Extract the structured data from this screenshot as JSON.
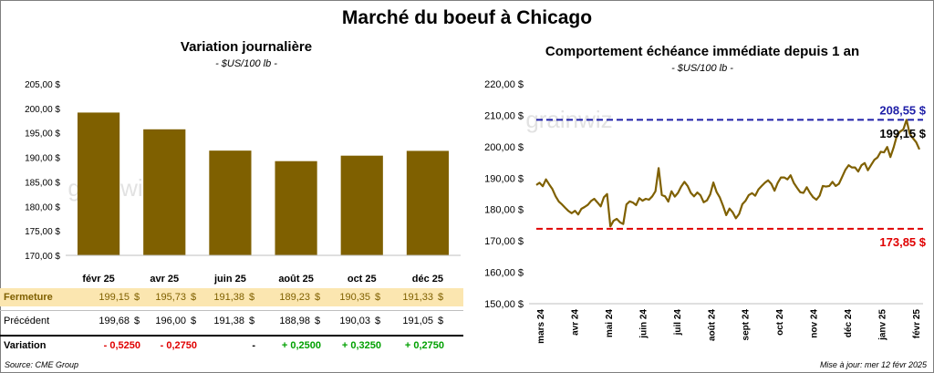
{
  "page_title": "Marché du boeuf à Chicago",
  "left_chart": {
    "title": "Variation journalière",
    "subtitle": "- $US/100 lb -",
    "watermark": "grainwiz"
  },
  "right_chart": {
    "title": "Comportement échéance immédiate depuis 1 an",
    "subtitle": "- $US/100 lb -",
    "watermark": "grainwiz",
    "high_label": "208,55 $",
    "last_label": "199,15 $",
    "low_label": "173,85 $"
  },
  "table": {
    "rows": [
      {
        "label": "Fermeture",
        "values": [
          "199,15",
          "195,73",
          "191,38",
          "189,23",
          "190,35",
          "191,33"
        ],
        "unit": "$"
      },
      {
        "label": "Précédent",
        "values": [
          "199,68",
          "196,00",
          "191,38",
          "188,98",
          "190,03",
          "191,05"
        ],
        "unit": "$"
      },
      {
        "label": "Variation",
        "values": [
          "- 0,5250",
          "- 0,2750",
          "-",
          "+ 0,2500",
          "+ 0,3250",
          "+ 0,2750"
        ],
        "unit": ""
      }
    ]
  },
  "footer": {
    "source": "Source: CME Group",
    "updated": "Mise à jour: mer 12 févr 2025"
  },
  "colors": {
    "bar": "#7f6000",
    "line": "#7f6000",
    "high": "#1f1fa8",
    "low": "#e00000",
    "up": "#00a000",
    "down": "#e00000",
    "highlight_row": "#fbe6b0"
  },
  "chart_data": [
    {
      "type": "bar",
      "title": "Variation journalière",
      "categories": [
        "févr 25",
        "avr 25",
        "juin 25",
        "août 25",
        "oct 25",
        "déc 25"
      ],
      "values": [
        199.15,
        195.73,
        191.38,
        189.23,
        190.35,
        191.33
      ],
      "ylim": [
        170,
        205
      ],
      "yticks": [
        "170,00 $",
        "175,00 $",
        "180,00 $",
        "185,00 $",
        "190,00 $",
        "195,00 $",
        "200,00 $",
        "205,00 $"
      ],
      "grid": false
    },
    {
      "type": "line",
      "title": "Comportement échéance immédiate depuis 1 an",
      "x_labels": [
        "mars 24",
        "avr 24",
        "mai 24",
        "juin 24",
        "juil 24",
        "août 24",
        "sept 24",
        "oct 24",
        "nov 24",
        "déc 24",
        "janv 25",
        "févr 25"
      ],
      "values": [
        187.8,
        188.5,
        187.4,
        189.6,
        188.0,
        186.5,
        184.2,
        182.5,
        181.6,
        180.5,
        179.5,
        178.8,
        179.6,
        178.4,
        180.2,
        180.8,
        181.5,
        182.7,
        183.4,
        182.2,
        181.0,
        183.9,
        184.9,
        174.6,
        176.4,
        177.0,
        175.9,
        175.4,
        181.6,
        182.6,
        182.2,
        181.4,
        183.6,
        182.8,
        183.4,
        183.1,
        184.2,
        185.8,
        193.2,
        184.6,
        184.2,
        182.5,
        185.8,
        184.1,
        185.3,
        187.3,
        188.8,
        187.5,
        185.3,
        184.2,
        185.4,
        184.5,
        182.3,
        182.9,
        184.8,
        188.6,
        185.6,
        183.8,
        181.2,
        178.2,
        180.3,
        179.1,
        177.2,
        178.6,
        181.7,
        182.8,
        184.6,
        185.2,
        184.4,
        186.4,
        187.5,
        188.5,
        189.3,
        188.2,
        186.0,
        188.5,
        190.2,
        190.2,
        189.6,
        190.9,
        188.4,
        186.9,
        185.5,
        185.3,
        187.1,
        185.3,
        183.9,
        183.1,
        184.4,
        187.5,
        187.3,
        187.5,
        188.8,
        187.5,
        188.2,
        190.4,
        192.6,
        194.1,
        193.4,
        193.4,
        192.1,
        194.1,
        194.8,
        192.5,
        194.2,
        195.8,
        196.6,
        198.4,
        198.2,
        199.9,
        196.7,
        199.8,
        203.5,
        204.8,
        205.5,
        208.55,
        204.1,
        202.7,
        201.4,
        199.15
      ],
      "ylim": [
        150,
        220
      ],
      "yticks": [
        "150,00 $",
        "160,00 $",
        "170,00 $",
        "180,00 $",
        "190,00 $",
        "200,00 $",
        "210,00 $",
        "220,00 $"
      ],
      "high": 208.55,
      "low": 173.85,
      "last": 199.15,
      "grid": false
    }
  ]
}
